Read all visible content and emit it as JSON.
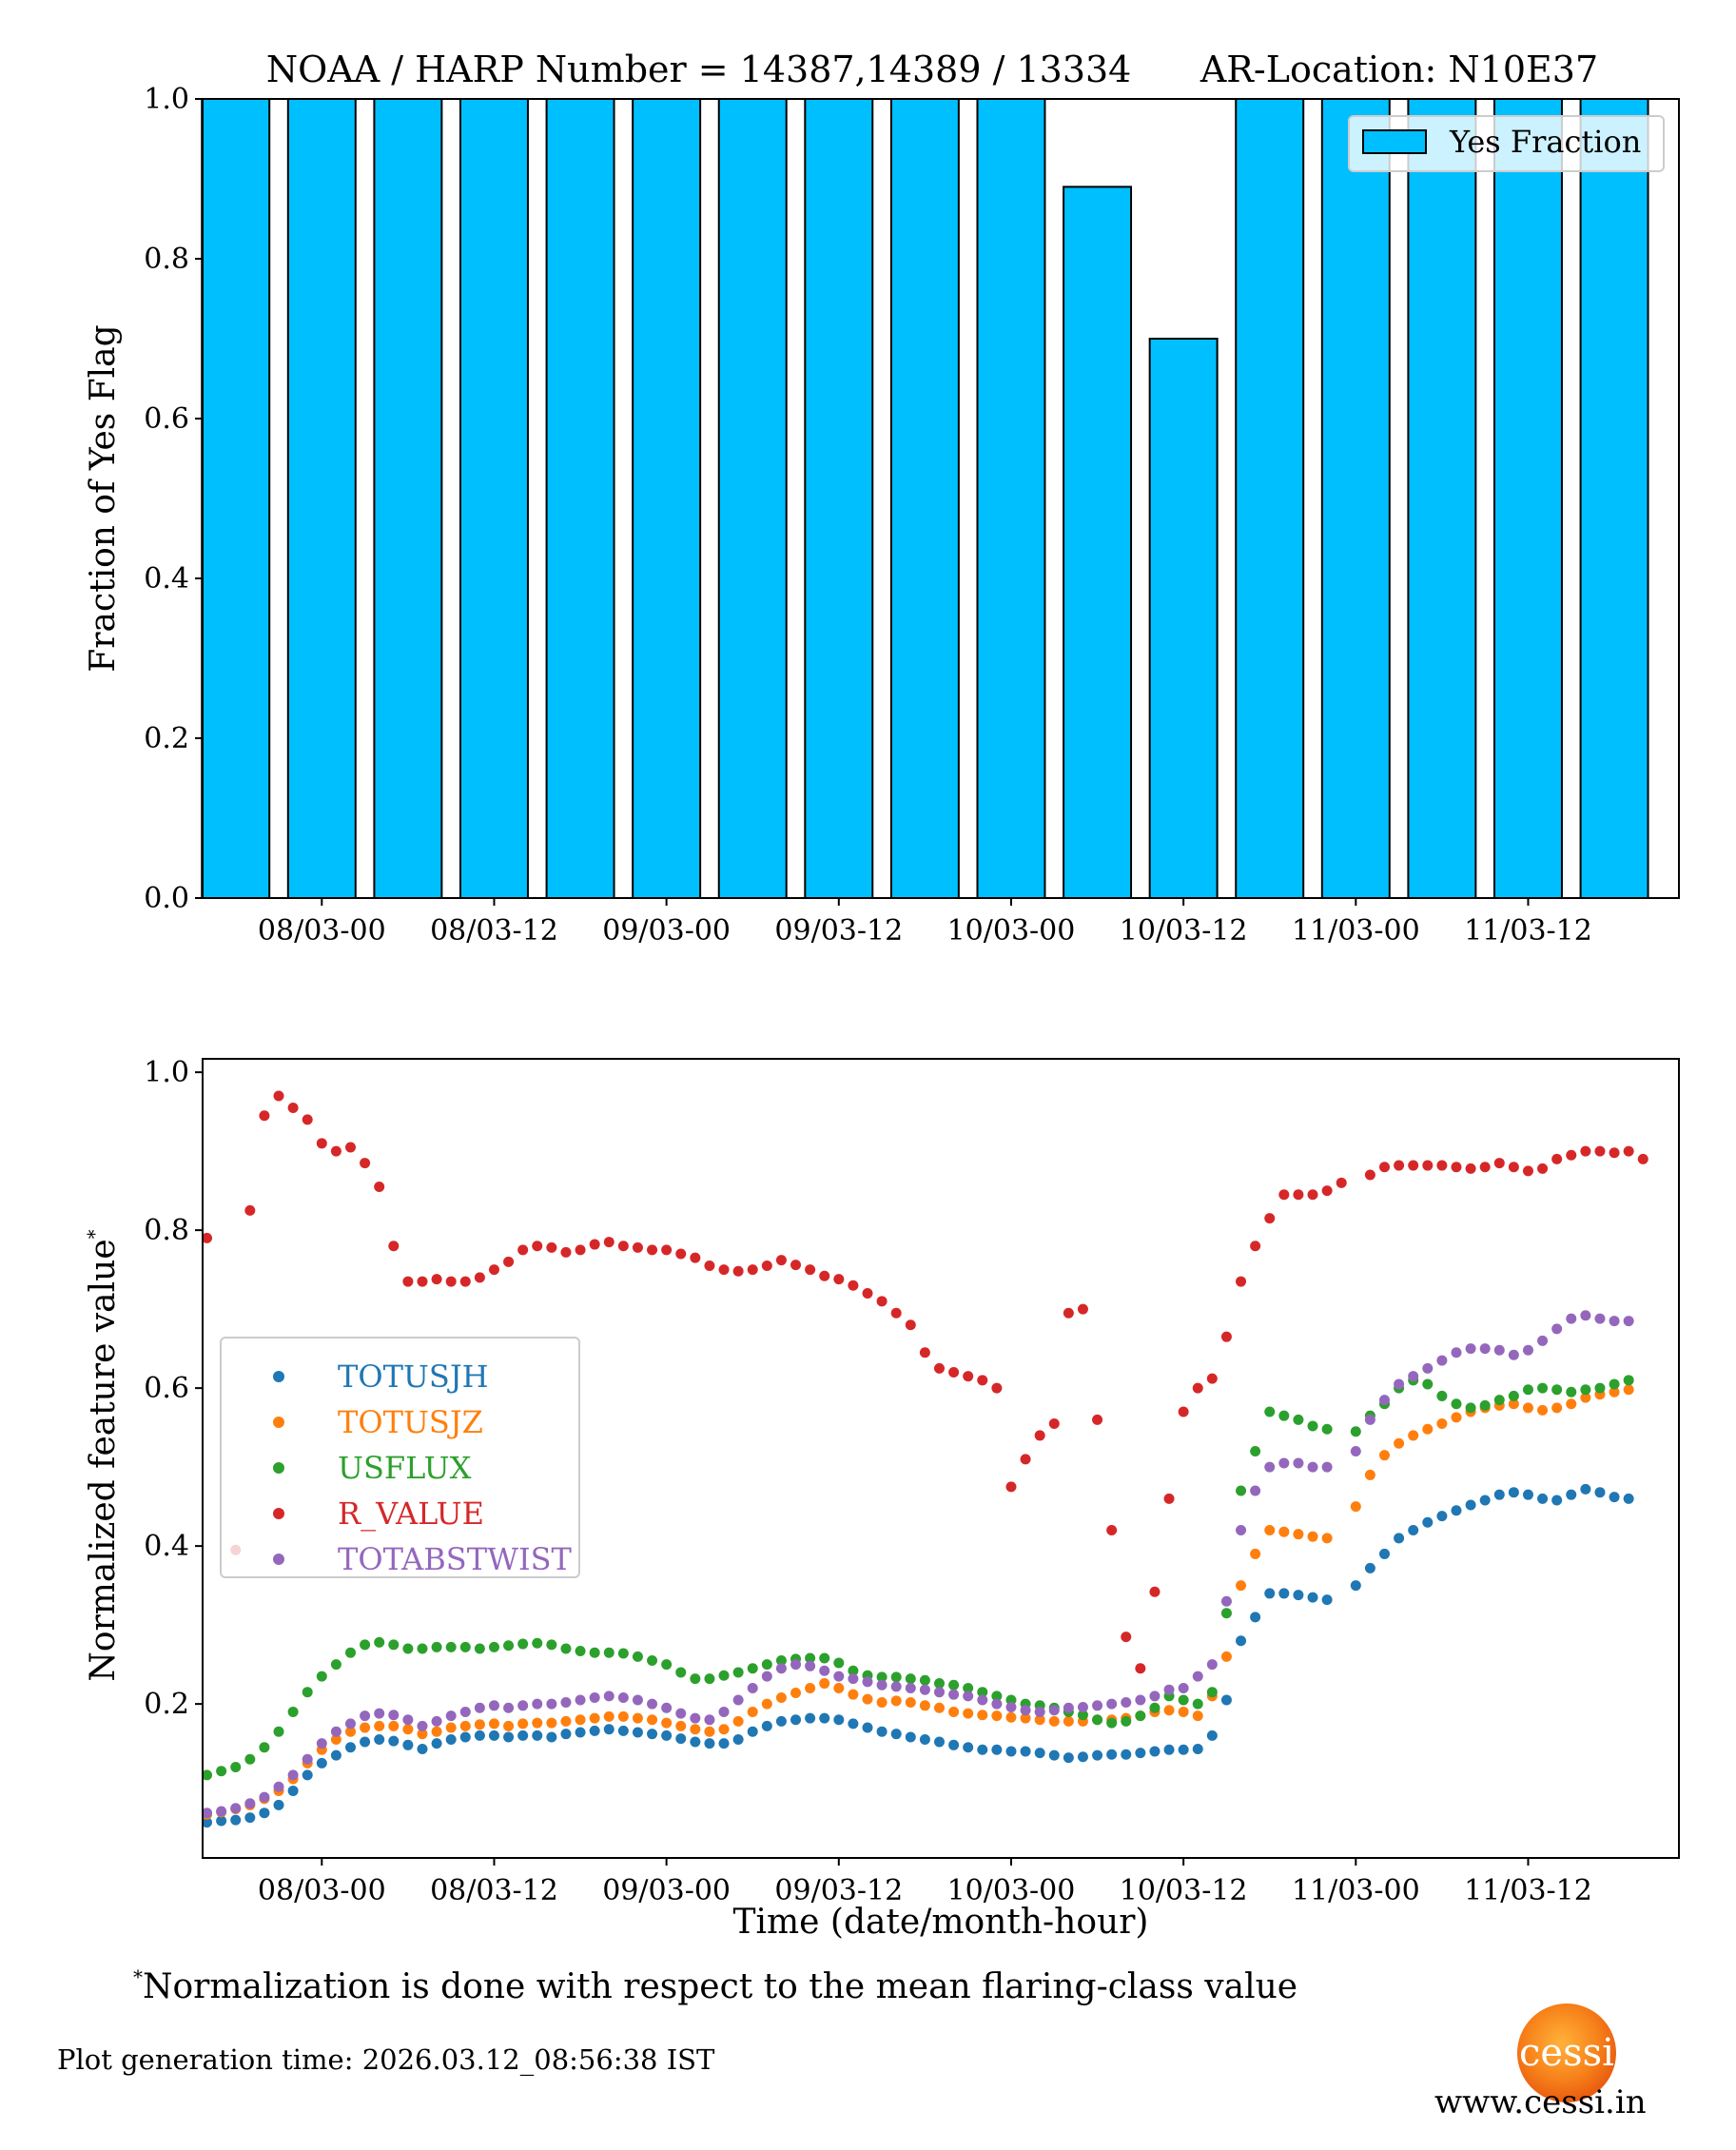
{
  "figure": {
    "title": "NOAA / HARP Number = 14387,14389 / 13334      AR-Location: N10E37",
    "footnote_marker": "*",
    "footnote_text": "Normalization is done with respect to the mean flaring-class value",
    "generation_time": "Plot generation time: 2026.03.12_08:56:38 IST",
    "logo_text": "cessi",
    "website": "www.cessi.in"
  },
  "chart_data": [
    {
      "type": "bar",
      "title": "NOAA / HARP Number = 14387,14389 / 13334      AR-Location: N10E37",
      "xlabel": "",
      "ylabel": "Fraction of Yes Flag",
      "x_unit": "hours since 08/03-00",
      "xlim": [
        -8.3,
        94.5
      ],
      "ylim": [
        0.0,
        1.0
      ],
      "yticks": [
        0.0,
        0.2,
        0.4,
        0.6,
        0.8,
        1.0
      ],
      "ytick_labels": [
        "0.0",
        "0.2",
        "0.4",
        "0.6",
        "0.8",
        "1.0"
      ],
      "xticks": [
        0,
        12,
        24,
        36,
        48,
        60,
        72,
        84
      ],
      "xtick_labels": [
        "08/03-00",
        "08/03-12",
        "09/03-00",
        "09/03-12",
        "10/03-00",
        "10/03-12",
        "11/03-00",
        "11/03-12"
      ],
      "bin_hours": 6,
      "bar_width_hours": 4.7,
      "bar_centers": [
        -6,
        0,
        6,
        12,
        18,
        24,
        30,
        36,
        42,
        48,
        54,
        60,
        66,
        72,
        78,
        84,
        90
      ],
      "values": [
        1.0,
        1.0,
        1.0,
        1.0,
        1.0,
        1.0,
        1.0,
        1.0,
        1.0,
        1.0,
        0.89,
        0.7,
        1.0,
        1.0,
        1.0,
        1.0,
        1.0
      ],
      "bar_color": "#00bfff",
      "edge_color": "#000000",
      "legend": {
        "entries": [
          "Yes Fraction"
        ],
        "position": "top-right"
      },
      "grid": false
    },
    {
      "type": "scatter",
      "xlabel": "Time (date/month-hour)",
      "ylabel": "Normalized feature value",
      "ylabel_suffix": "*",
      "x_unit": "hours since 08/03-00",
      "xlim": [
        -8.3,
        94.5
      ],
      "ylim": [
        0.005,
        1.017
      ],
      "yticks": [
        0.2,
        0.4,
        0.6,
        0.8,
        1.0
      ],
      "ytick_labels": [
        "0.2",
        "0.4",
        "0.6",
        "0.8",
        "1.0"
      ],
      "xticks": [
        0,
        12,
        24,
        36,
        48,
        60,
        72,
        84
      ],
      "xtick_labels": [
        "08/03-00",
        "08/03-12",
        "09/03-00",
        "09/03-12",
        "10/03-00",
        "10/03-12",
        "11/03-00",
        "11/03-12"
      ],
      "x_start": -8,
      "x_step": 1,
      "legend": {
        "position": "center-left"
      },
      "grid": false,
      "series": [
        {
          "name": "TOTUSJH",
          "color": "#1f77b4",
          "values": [
            0.05,
            0.052,
            0.053,
            0.056,
            0.062,
            0.072,
            0.09,
            0.11,
            0.125,
            0.135,
            0.145,
            0.152,
            0.155,
            0.153,
            0.148,
            0.143,
            0.15,
            0.155,
            0.158,
            0.16,
            0.16,
            0.158,
            0.16,
            0.16,
            0.158,
            0.162,
            0.164,
            0.166,
            0.168,
            0.166,
            0.164,
            0.162,
            0.16,
            0.156,
            0.152,
            0.15,
            0.15,
            0.155,
            0.165,
            0.172,
            0.178,
            0.18,
            0.182,
            0.182,
            0.18,
            0.175,
            0.17,
            0.165,
            0.162,
            0.158,
            0.155,
            0.152,
            0.148,
            0.145,
            0.142,
            0.142,
            0.14,
            0.14,
            0.138,
            0.135,
            0.132,
            0.133,
            0.135,
            0.136,
            0.136,
            0.138,
            0.14,
            0.142,
            0.142,
            0.143,
            0.16,
            0.205,
            0.28,
            0.31,
            0.34,
            0.34,
            0.338,
            0.335,
            0.332,
            null,
            0.35,
            0.372,
            0.39,
            0.41,
            0.42,
            0.43,
            0.438,
            0.445,
            0.452,
            0.458,
            0.465,
            0.468,
            0.465,
            0.46,
            0.458,
            0.465,
            0.472,
            0.468,
            0.462,
            0.46,
            null,
            null,
            null
          ]
        },
        {
          "name": "TOTUSJZ",
          "color": "#ff7f0e",
          "values": [
            0.06,
            0.063,
            0.067,
            0.072,
            0.08,
            0.09,
            0.105,
            0.125,
            0.142,
            0.155,
            0.165,
            0.17,
            0.172,
            0.172,
            0.168,
            0.162,
            0.165,
            0.17,
            0.172,
            0.174,
            0.175,
            0.172,
            0.175,
            0.176,
            0.176,
            0.178,
            0.18,
            0.182,
            0.184,
            0.184,
            0.182,
            0.18,
            0.176,
            0.172,
            0.168,
            0.165,
            0.168,
            0.178,
            0.19,
            0.2,
            0.208,
            0.214,
            0.22,
            0.226,
            0.22,
            0.212,
            0.206,
            0.202,
            0.204,
            0.202,
            0.198,
            0.195,
            0.19,
            0.188,
            0.186,
            0.185,
            0.183,
            0.182,
            0.18,
            0.178,
            0.178,
            0.178,
            0.18,
            0.18,
            0.182,
            0.185,
            0.19,
            0.192,
            0.19,
            0.185,
            0.21,
            0.26,
            0.35,
            0.39,
            0.42,
            0.418,
            0.415,
            0.412,
            0.41,
            null,
            0.45,
            0.49,
            0.515,
            0.53,
            0.54,
            0.548,
            0.555,
            0.563,
            0.57,
            0.575,
            0.578,
            0.58,
            0.575,
            0.572,
            0.575,
            0.58,
            0.588,
            0.592,
            0.595,
            0.598,
            null,
            null,
            null
          ]
        },
        {
          "name": "USFLUX",
          "color": "#2ca02c",
          "values": [
            0.11,
            0.115,
            0.12,
            0.13,
            0.145,
            0.165,
            0.19,
            0.215,
            0.235,
            0.25,
            0.265,
            0.275,
            0.278,
            0.275,
            0.27,
            0.27,
            0.272,
            0.272,
            0.272,
            0.27,
            0.272,
            0.274,
            0.276,
            0.277,
            0.275,
            0.27,
            0.267,
            0.265,
            0.265,
            0.264,
            0.26,
            0.255,
            0.25,
            0.24,
            0.232,
            0.232,
            0.236,
            0.24,
            0.245,
            0.25,
            0.255,
            0.257,
            0.258,
            0.258,
            0.252,
            0.242,
            0.236,
            0.234,
            0.234,
            0.232,
            0.23,
            0.226,
            0.224,
            0.22,
            0.215,
            0.21,
            0.205,
            0.2,
            0.198,
            0.195,
            0.19,
            0.186,
            0.18,
            0.176,
            0.178,
            0.185,
            0.195,
            0.21,
            0.205,
            0.2,
            0.215,
            0.315,
            0.47,
            0.52,
            0.57,
            0.565,
            0.56,
            0.552,
            0.548,
            null,
            0.545,
            0.565,
            0.58,
            0.6,
            0.61,
            0.605,
            0.59,
            0.58,
            0.575,
            0.578,
            0.585,
            0.59,
            0.598,
            0.6,
            0.598,
            0.595,
            0.598,
            0.6,
            0.605,
            0.61,
            null,
            null,
            null
          ]
        },
        {
          "name": "R_VALUE",
          "color": "#d62728",
          "values": [
            0.79,
            null,
            0.395,
            0.825,
            0.945,
            0.97,
            0.955,
            0.94,
            0.91,
            0.9,
            0.905,
            0.885,
            0.855,
            0.78,
            0.735,
            0.735,
            0.738,
            0.735,
            0.735,
            0.74,
            0.75,
            0.76,
            0.775,
            0.78,
            0.778,
            0.772,
            0.775,
            0.782,
            0.785,
            0.78,
            0.778,
            0.775,
            0.775,
            0.77,
            0.765,
            0.755,
            0.75,
            0.748,
            0.75,
            0.755,
            0.762,
            0.756,
            0.75,
            0.742,
            0.738,
            0.73,
            0.72,
            0.71,
            0.695,
            0.68,
            0.645,
            0.625,
            0.62,
            0.615,
            0.61,
            0.6,
            0.475,
            0.51,
            0.54,
            0.555,
            0.695,
            0.7,
            0.56,
            0.42,
            0.285,
            0.245,
            0.342,
            0.46,
            0.57,
            0.6,
            0.612,
            0.665,
            0.735,
            0.78,
            0.815,
            0.845,
            0.845,
            0.845,
            0.85,
            0.86,
            null,
            0.87,
            0.88,
            0.882,
            0.882,
            0.882,
            0.882,
            0.88,
            0.878,
            0.88,
            0.885,
            0.88,
            0.875,
            0.878,
            0.89,
            0.895,
            0.9,
            0.9,
            0.898,
            0.9,
            0.89,
            null,
            null
          ]
        },
        {
          "name": "TOTABSTWIST",
          "color": "#9467bd",
          "values": [
            0.062,
            0.064,
            0.068,
            0.074,
            0.082,
            0.095,
            0.11,
            0.13,
            0.15,
            0.165,
            0.175,
            0.185,
            0.188,
            0.186,
            0.18,
            0.172,
            0.178,
            0.185,
            0.19,
            0.195,
            0.198,
            0.195,
            0.198,
            0.2,
            0.2,
            0.202,
            0.205,
            0.208,
            0.21,
            0.208,
            0.205,
            0.2,
            0.195,
            0.188,
            0.182,
            0.18,
            0.19,
            0.205,
            0.22,
            0.235,
            0.245,
            0.25,
            0.248,
            0.242,
            0.235,
            0.232,
            0.228,
            0.224,
            0.222,
            0.22,
            0.218,
            0.215,
            0.212,
            0.21,
            0.205,
            0.2,
            0.196,
            0.192,
            0.19,
            0.192,
            0.195,
            0.196,
            0.198,
            0.2,
            0.202,
            0.205,
            0.21,
            0.218,
            0.22,
            0.235,
            0.25,
            0.33,
            0.42,
            0.47,
            0.5,
            0.505,
            0.505,
            0.5,
            0.5,
            null,
            0.52,
            0.56,
            0.585,
            0.605,
            0.615,
            0.625,
            0.635,
            0.645,
            0.65,
            0.65,
            0.648,
            0.642,
            0.648,
            0.66,
            0.675,
            0.688,
            0.692,
            0.688,
            0.685,
            0.685,
            null,
            null,
            null
          ]
        }
      ]
    }
  ]
}
